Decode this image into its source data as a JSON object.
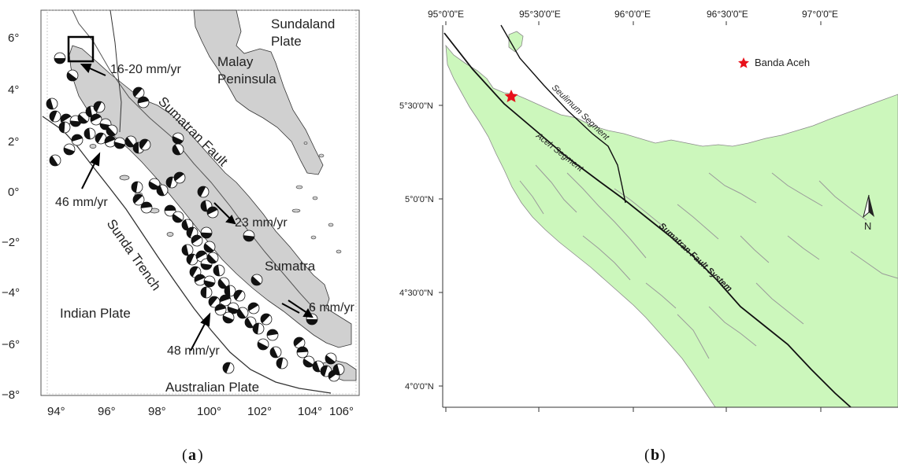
{
  "panel_a": {
    "caption_label": "a",
    "y_ticks": [
      "6°",
      "4°",
      "2°",
      "0°",
      "−2°",
      "−4°",
      "−6°",
      "−8°"
    ],
    "x_ticks": [
      "94°",
      "96°",
      "98°",
      "100°",
      "102°",
      "104°",
      "106°"
    ],
    "labels": {
      "sundaland": "Sundaland",
      "plate": "Plate",
      "malay": "Malay",
      "peninsula": "Peninsula",
      "sumatran_fault": "Sumatran Fault",
      "sumatra": "Sumatra",
      "sunda_trench": "Sunda Trench",
      "indian_plate": "Indian Plate",
      "australian_plate": "Australian Plate"
    },
    "rates": {
      "r1": "16-20 mm/yr",
      "r2": "46 mm/yr",
      "r3": "23 mm/yr",
      "r4": "6 mm/yr",
      "r5": "48 mm/yr"
    },
    "colors": {
      "land": "#d0d0d0",
      "trench": "#333333"
    }
  },
  "panel_b": {
    "caption_label": "b",
    "x_ticks": [
      "95°0'0\"E",
      "95°30'0\"E",
      "96°0'0\"E",
      "96°30'0\"E",
      "97°0'0\"E"
    ],
    "y_ticks": [
      "5°30'0\"N",
      "5°0'0\"N",
      "4°30'0\"N",
      "4°0'0\"N"
    ],
    "legend": "Banda Aceh",
    "labels": {
      "seulimum": "Seulimum Segment",
      "aceh": "Aceh Segment",
      "sfs": "Sumatran Fault System"
    },
    "north": "N",
    "colors": {
      "land": "#ccf7bc",
      "river": "#9a9a9a",
      "fault": "#111111",
      "marker": "#e8101a"
    }
  }
}
